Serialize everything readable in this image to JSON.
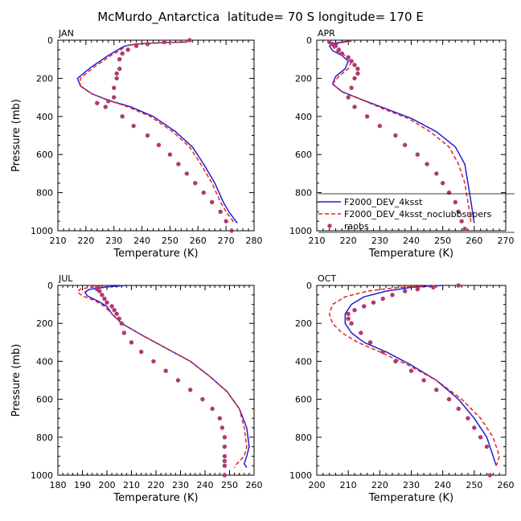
{
  "figure_title": "McMurdo_Antarctica  latitude= 70 S longitude= 170 E",
  "colors": {
    "F2000_DEV_4ksst": "#1f1fd6",
    "F2000_DEV_4ksst_noclubbsupers": "#e8231b",
    "raobs": "#b03a6e"
  },
  "legend": {
    "panel": "APR",
    "entries": [
      {
        "label": "F2000_DEV_4ksst",
        "style": "solid",
        "color": "#1f1fd6"
      },
      {
        "label": "F2000_DEV_4ksst_noclubbsupers",
        "style": "dashed",
        "color": "#e8231b"
      },
      {
        "label": "raobs",
        "style": "dot",
        "color": "#b03a6e"
      }
    ]
  },
  "chart_data": [
    {
      "type": "line",
      "title": "JAN",
      "xlabel": "Temperature (K)",
      "ylabel": "Pressure (mb)",
      "xlim": [
        210,
        280
      ],
      "ylim": [
        1000,
        0
      ],
      "y_inverted": true,
      "grid": false,
      "xticks": [
        210,
        220,
        230,
        240,
        250,
        260,
        270,
        280
      ],
      "yticks": [
        0,
        200,
        400,
        600,
        800,
        1000
      ],
      "series": [
        {
          "name": "F2000_DEV_4ksst",
          "style": "solid",
          "color": "#1f1fd6",
          "x": [
            256,
            250,
            244,
            238,
            234,
            232,
            228,
            222,
            217,
            218,
            222,
            228,
            236,
            244,
            252,
            258,
            262,
            266,
            269,
            271,
            274
          ],
          "y": [
            10,
            12,
            15,
            20,
            30,
            45,
            80,
            140,
            200,
            240,
            280,
            315,
            350,
            400,
            480,
            560,
            650,
            750,
            850,
            900,
            960
          ]
        },
        {
          "name": "F2000_DEV_4ksst_noclubbsupers",
          "style": "dashed",
          "color": "#e8231b",
          "x": [
            256,
            250,
            244,
            238,
            234,
            233,
            229,
            223,
            218,
            218,
            222,
            228,
            235,
            243,
            251,
            257,
            261,
            265,
            268,
            270,
            273
          ],
          "y": [
            10,
            12,
            15,
            20,
            30,
            45,
            80,
            140,
            200,
            240,
            280,
            315,
            350,
            400,
            480,
            560,
            650,
            750,
            850,
            900,
            960
          ]
        },
        {
          "name": "raobs",
          "style": "dot",
          "color": "#b03a6e",
          "x": [
            257,
            248,
            242,
            238,
            235,
            233,
            232,
            232,
            231,
            231,
            230,
            230,
            228,
            224,
            227,
            233,
            237,
            242,
            246,
            250,
            253,
            256,
            259,
            262,
            265,
            268,
            270,
            272
          ],
          "y": [
            0,
            10,
            20,
            30,
            50,
            70,
            100,
            150,
            175,
            200,
            250,
            300,
            320,
            330,
            350,
            400,
            450,
            500,
            550,
            600,
            650,
            700,
            750,
            800,
            850,
            900,
            950,
            1000
          ]
        }
      ]
    },
    {
      "type": "line",
      "title": "APR",
      "xlabel": "Temperature (K)",
      "ylabel": "",
      "xlim": [
        210,
        270
      ],
      "ylim": [
        1000,
        0
      ],
      "y_inverted": true,
      "grid": false,
      "xticks": [
        210,
        220,
        230,
        240,
        250,
        260,
        270
      ],
      "yticks": [
        0,
        200,
        400,
        600,
        800,
        1000
      ],
      "series": [
        {
          "name": "F2000_DEV_4ksst",
          "style": "solid",
          "color": "#1f1fd6",
          "x": [
            220,
            216,
            214,
            215,
            218,
            220,
            219,
            216,
            215,
            218,
            224,
            232,
            240,
            248,
            254,
            257,
            258,
            259,
            260
          ],
          "y": [
            5,
            15,
            30,
            55,
            80,
            110,
            150,
            190,
            230,
            270,
            310,
            360,
            410,
            480,
            560,
            650,
            750,
            850,
            960
          ]
        },
        {
          "name": "F2000_DEV_4ksst_noclubbsupers",
          "style": "dashed",
          "color": "#e8231b",
          "x": [
            221,
            217,
            215,
            216,
            219,
            221,
            220,
            217,
            215,
            218,
            224,
            231,
            239,
            246,
            252,
            255,
            257,
            258,
            259
          ],
          "y": [
            5,
            15,
            30,
            55,
            80,
            110,
            150,
            190,
            230,
            270,
            310,
            360,
            410,
            480,
            560,
            650,
            750,
            850,
            960
          ]
        },
        {
          "name": "raobs",
          "style": "dot",
          "color": "#b03a6e",
          "x": [
            214,
            215,
            216,
            217,
            218,
            220,
            221,
            222,
            223,
            223,
            222,
            221,
            220,
            222,
            226,
            230,
            235,
            238,
            242,
            245,
            248,
            250,
            252,
            254,
            255,
            256,
            257
          ],
          "y": [
            10,
            20,
            30,
            50,
            70,
            90,
            110,
            130,
            150,
            175,
            200,
            250,
            300,
            350,
            400,
            450,
            500,
            550,
            600,
            650,
            700,
            750,
            800,
            850,
            900,
            950,
            990
          ]
        }
      ]
    },
    {
      "type": "line",
      "title": "JUL",
      "xlabel": "Temperature (K)",
      "ylabel": "Pressure (mb)",
      "xlim": [
        180,
        260
      ],
      "ylim": [
        1000,
        0
      ],
      "y_inverted": true,
      "grid": false,
      "xticks": [
        180,
        190,
        200,
        210,
        220,
        230,
        240,
        250,
        260
      ],
      "yticks": [
        0,
        200,
        400,
        600,
        800,
        1000
      ],
      "series": [
        {
          "name": "F2000_DEV_4ksst",
          "style": "solid",
          "color": "#1f1fd6",
          "x": [
            208,
            200,
            193,
            191,
            192,
            196,
            200,
            202,
            206,
            214,
            224,
            234,
            242,
            249,
            254,
            257,
            258,
            257,
            256,
            257
          ],
          "y": [
            0,
            8,
            20,
            35,
            55,
            80,
            110,
            150,
            200,
            260,
            330,
            400,
            480,
            560,
            650,
            750,
            850,
            900,
            940,
            960
          ]
        },
        {
          "name": "F2000_DEV_4ksst_noclubbsupers",
          "style": "dashed",
          "color": "#e8231b",
          "x": [
            200,
            194,
            189,
            188,
            190,
            195,
            199,
            202,
            206,
            214,
            224,
            234,
            242,
            249,
            254,
            256,
            257,
            256,
            253,
            252
          ],
          "y": [
            0,
            8,
            20,
            35,
            55,
            80,
            110,
            150,
            200,
            260,
            330,
            400,
            480,
            560,
            650,
            750,
            850,
            900,
            940,
            960
          ]
        },
        {
          "name": "raobs",
          "style": "dot",
          "color": "#b03a6e",
          "x": [
            196,
            196,
            197,
            198,
            199,
            200,
            202,
            203,
            204,
            205,
            206,
            207,
            210,
            214,
            219,
            224,
            229,
            234,
            239,
            243,
            246,
            247,
            248,
            248,
            248,
            248,
            248,
            248
          ],
          "y": [
            10,
            20,
            30,
            50,
            70,
            90,
            110,
            130,
            150,
            175,
            200,
            250,
            300,
            350,
            400,
            450,
            500,
            550,
            600,
            650,
            700,
            750,
            800,
            850,
            900,
            925,
            950,
            1000
          ]
        }
      ]
    },
    {
      "type": "line",
      "title": "OCT",
      "xlabel": "Temperature (K)",
      "ylabel": "",
      "xlim": [
        200,
        260
      ],
      "ylim": [
        1000,
        0
      ],
      "y_inverted": true,
      "grid": false,
      "xticks": [
        200,
        210,
        220,
        230,
        240,
        250,
        260
      ],
      "yticks": [
        0,
        200,
        400,
        600,
        800,
        1000
      ],
      "series": [
        {
          "name": "F2000_DEV_4ksst",
          "style": "solid",
          "color": "#1f1fd6",
          "x": [
            240,
            230,
            222,
            215,
            211,
            209,
            209,
            211,
            215,
            222,
            230,
            238,
            245,
            250,
            254,
            256,
            257
          ],
          "y": [
            0,
            10,
            30,
            60,
            100,
            150,
            200,
            250,
            300,
            350,
            420,
            500,
            600,
            700,
            800,
            900,
            950
          ]
        },
        {
          "name": "F2000_DEV_4ksst_noclubbsupers",
          "style": "dashed",
          "color": "#e8231b",
          "x": [
            238,
            226,
            216,
            209,
            205,
            204,
            205,
            208,
            213,
            220,
            229,
            238,
            246,
            252,
            256,
            258,
            257
          ],
          "y": [
            0,
            10,
            30,
            60,
            100,
            150,
            200,
            250,
            300,
            350,
            420,
            500,
            600,
            700,
            800,
            900,
            950
          ]
        },
        {
          "name": "raobs",
          "style": "dot",
          "color": "#b03a6e",
          "x": [
            245,
            237,
            232,
            228,
            224,
            221,
            218,
            215,
            212,
            210,
            210,
            211,
            214,
            217,
            221,
            225,
            230,
            234,
            238,
            242,
            245,
            248,
            250,
            252,
            254,
            255
          ],
          "y": [
            0,
            10,
            20,
            30,
            50,
            70,
            90,
            110,
            130,
            150,
            175,
            200,
            250,
            300,
            350,
            400,
            450,
            500,
            550,
            600,
            650,
            700,
            750,
            800,
            850,
            1000
          ]
        }
      ]
    }
  ]
}
